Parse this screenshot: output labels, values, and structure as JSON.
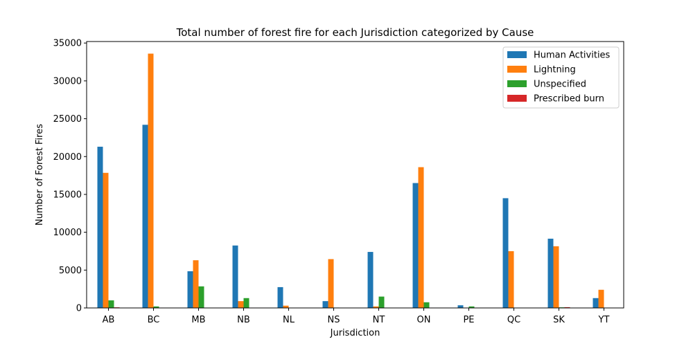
{
  "chart_data": {
    "type": "bar",
    "title": "Total number of forest fire for each Jurisdiction categorized by Cause",
    "xlabel": "Jurisdiction",
    "ylabel": "Number of Forest Fires",
    "categories": [
      "AB",
      "BC",
      "MB",
      "NB",
      "NL",
      "NS",
      "NT",
      "ON",
      "PE",
      "QC",
      "SK",
      "YT"
    ],
    "yticks": [
      0,
      5000,
      10000,
      15000,
      20000,
      25000,
      30000,
      35000
    ],
    "ylim": [
      0,
      35200
    ],
    "grid": false,
    "legend_position": "top-right",
    "series": [
      {
        "name": "Human Activities",
        "color": "#1f77b4",
        "values": [
          21300,
          24200,
          4850,
          8250,
          2750,
          900,
          7400,
          16500,
          350,
          14500,
          9150,
          1300
        ]
      },
      {
        "name": "Lightning",
        "color": "#ff7f0e",
        "values": [
          17850,
          33600,
          6300,
          900,
          300,
          6450,
          200,
          18600,
          30,
          7500,
          8150,
          2400
        ]
      },
      {
        "name": "Unspecified",
        "color": "#2ca02c",
        "values": [
          1000,
          200,
          2850,
          1300,
          0,
          50,
          1500,
          750,
          200,
          0,
          80,
          0
        ]
      },
      {
        "name": "Prescribed burn",
        "color": "#d62728",
        "values": [
          80,
          0,
          0,
          0,
          0,
          0,
          0,
          0,
          0,
          0,
          100,
          0
        ]
      }
    ]
  }
}
